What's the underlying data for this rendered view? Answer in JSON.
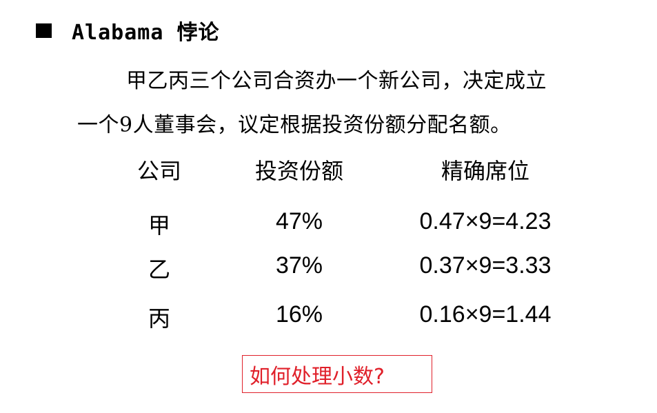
{
  "title": "Alabama 悖论",
  "paragraph": {
    "line1": "甲乙丙三个公司合资办一个新公司，决定成立",
    "line2_prefix": "一个",
    "line2_num": "9",
    "line2_suffix": "人董事会，议定根据投资份额分配名额。"
  },
  "table": {
    "headers": [
      "公司",
      "投资份额",
      "精确席位"
    ],
    "rows": [
      {
        "company": "甲",
        "share": "47%",
        "seats": "0.47×9=4.23"
      },
      {
        "company": "乙",
        "share": "37%",
        "seats": "0.37×9=3.33"
      },
      {
        "company": "丙",
        "share": "16%",
        "seats": "0.16×9=1.44"
      }
    ]
  },
  "question": "如何处理小数?",
  "colors": {
    "text": "#000000",
    "question": "#e0202a",
    "background": "#ffffff"
  }
}
